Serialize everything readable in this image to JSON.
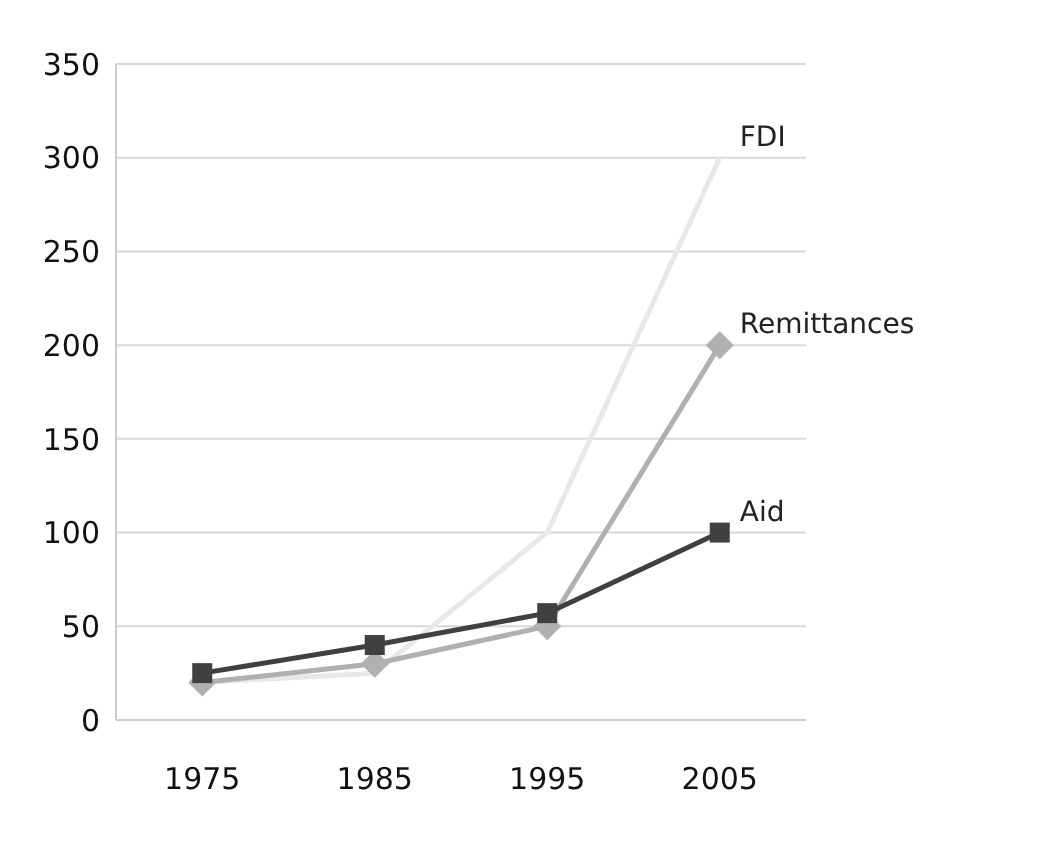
{
  "chart_data": {
    "type": "line",
    "categories": [
      "1975",
      "1985",
      "1995",
      "2005"
    ],
    "series": [
      {
        "name": "FDI",
        "color": "#e8e8e8",
        "values": [
          20,
          25,
          100,
          300
        ],
        "marker": "none"
      },
      {
        "name": "Remittances",
        "color": "#b0b0b0",
        "values": [
          20,
          30,
          50,
          200
        ],
        "marker": "diamond"
      },
      {
        "name": "Aid",
        "color": "#404040",
        "values": [
          25,
          40,
          57,
          100
        ],
        "marker": "square"
      }
    ],
    "ylim": [
      0,
      350
    ],
    "yticks": [
      0,
      50,
      100,
      150,
      200,
      250,
      300,
      350
    ],
    "grid": "y"
  }
}
